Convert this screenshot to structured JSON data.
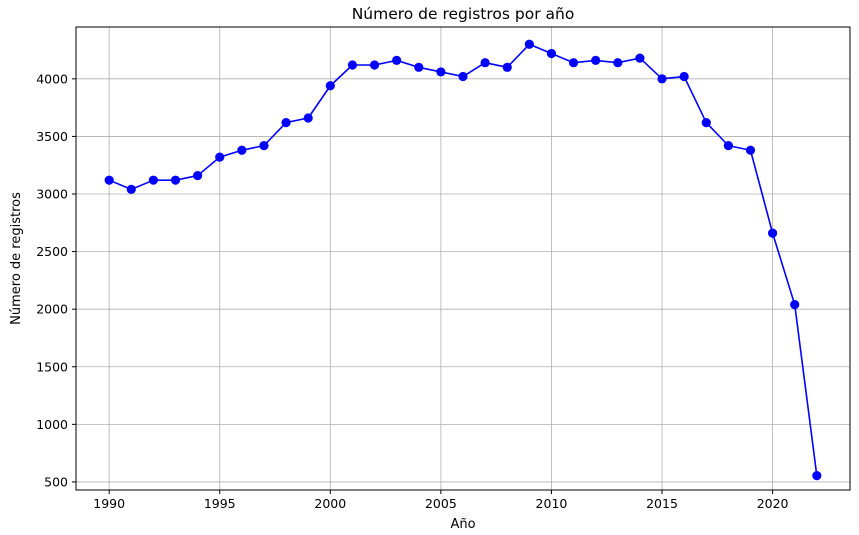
{
  "chart_data": {
    "type": "line",
    "title": "Número de registros por año",
    "xlabel": "Año",
    "ylabel": "Número de registros",
    "xlim": [
      1988.5,
      2023.5
    ],
    "ylim": [
      430,
      4450
    ],
    "x_ticks": [
      1990,
      1995,
      2000,
      2005,
      2010,
      2015,
      2020
    ],
    "y_ticks": [
      500,
      1000,
      1500,
      2000,
      2500,
      3000,
      3500,
      4000
    ],
    "grid": true,
    "color": "#0000ff",
    "marker": "circle",
    "series": [
      {
        "x": [
          1990,
          1991,
          1992,
          1993,
          1994,
          1995,
          1996,
          1997,
          1998,
          1999,
          2000,
          2001,
          2002,
          2003,
          2004,
          2005,
          2006,
          2007,
          2008,
          2009,
          2010,
          2011,
          2012,
          2013,
          2014,
          2015,
          2016,
          2017,
          2018,
          2019,
          2020,
          2021,
          2022
        ],
        "values": [
          3120,
          3040,
          3120,
          3120,
          3160,
          3320,
          3380,
          3420,
          3620,
          3660,
          3940,
          4120,
          4120,
          4160,
          4100,
          4060,
          4020,
          4140,
          4100,
          4300,
          4220,
          4140,
          4160,
          4140,
          4180,
          4000,
          4020,
          3620,
          3420,
          3380,
          2660,
          2040,
          555
        ]
      }
    ]
  }
}
